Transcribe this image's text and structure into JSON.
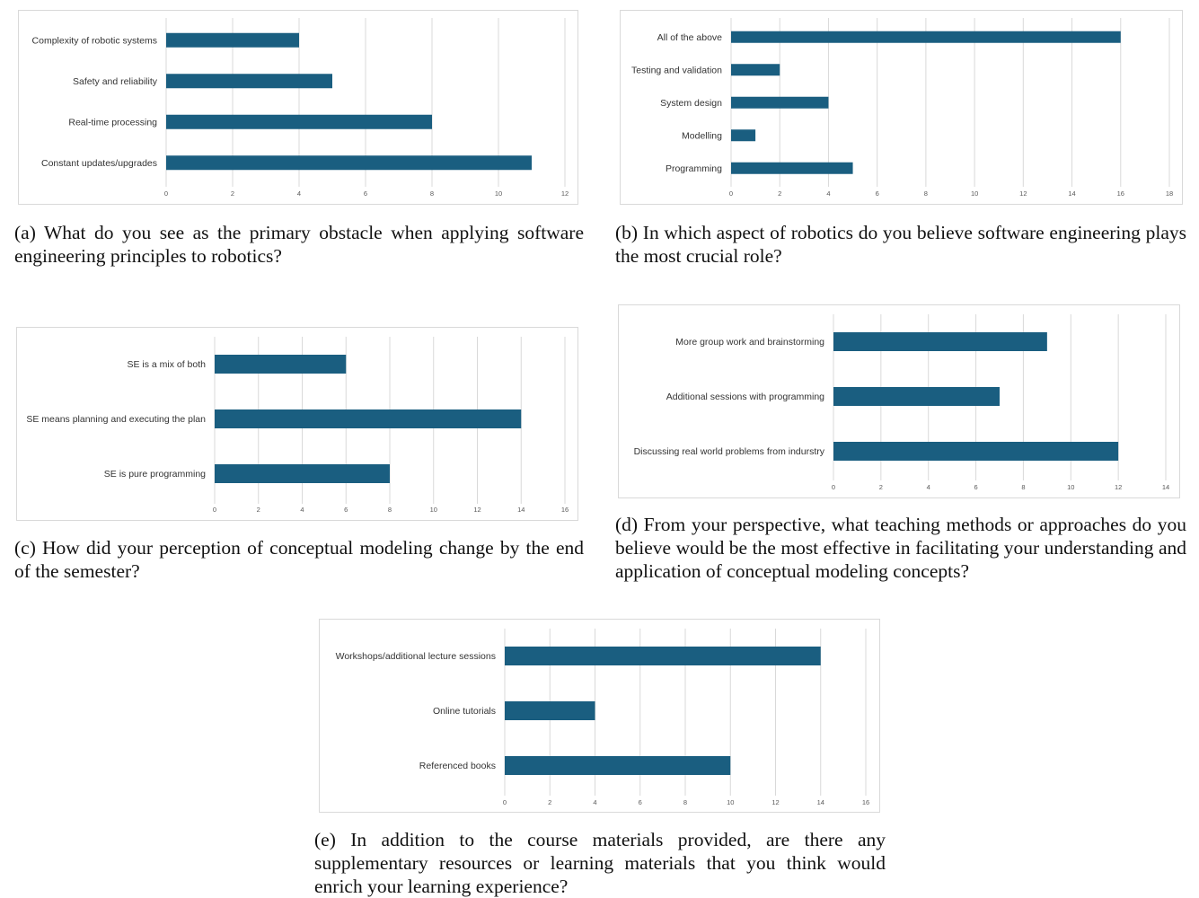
{
  "colors": {
    "bar": "#1a5e80",
    "grid": "#d9d9d9",
    "border": "#d9d9d9"
  },
  "chart_data": [
    {
      "id": "a",
      "type": "bar",
      "orientation": "horizontal",
      "categories": [
        "Complexity of robotic systems",
        "Safety and reliability",
        "Real-time processing",
        "Constant updates/upgrades"
      ],
      "values": [
        4,
        5,
        8,
        11
      ],
      "xlim": [
        0,
        12
      ],
      "ticks": [
        "0",
        "2",
        "4",
        "6",
        "8",
        "10",
        "12"
      ],
      "grid": true,
      "legend": "none",
      "caption": "(a) What do you see as the primary obstacle when applying software engineering principles to robotics?"
    },
    {
      "id": "b",
      "type": "bar",
      "orientation": "horizontal",
      "categories": [
        "All of the above",
        "Testing and validation",
        "System design",
        "Modelling",
        "Programming"
      ],
      "values": [
        16,
        2,
        4,
        1,
        5
      ],
      "xlim": [
        0,
        18
      ],
      "ticks": [
        "0",
        "2",
        "4",
        "6",
        "8",
        "10",
        "12",
        "14",
        "16",
        "18"
      ],
      "grid": true,
      "legend": "none",
      "caption": "(b) In which aspect of robotics do you believe software engineering plays the most crucial role?"
    },
    {
      "id": "c",
      "type": "bar",
      "orientation": "horizontal",
      "categories": [
        "SE is a mix of both",
        "SE means planning and executing the plan",
        "SE is pure programming"
      ],
      "values": [
        6,
        14,
        8
      ],
      "xlim": [
        0,
        16
      ],
      "ticks": [
        "0",
        "2",
        "4",
        "6",
        "8",
        "10",
        "12",
        "14",
        "16"
      ],
      "grid": true,
      "legend": "none",
      "caption": "(c) How did your perception of conceptual modeling change by the end of the semester?"
    },
    {
      "id": "d",
      "type": "bar",
      "orientation": "horizontal",
      "categories": [
        "More group work and brainstorming",
        "Additional sessions with programming",
        "Discussing real world problems from indurstry"
      ],
      "values": [
        9,
        7,
        12
      ],
      "xlim": [
        0,
        14
      ],
      "ticks": [
        "0",
        "2",
        "4",
        "6",
        "8",
        "10",
        "12",
        "14"
      ],
      "grid": true,
      "legend": "none",
      "caption": "(d) From your perspective, what teaching methods or approaches do you believe would be the most effective in facilitating your understanding and application of conceptual modeling concepts?"
    },
    {
      "id": "e",
      "type": "bar",
      "orientation": "horizontal",
      "categories": [
        "Workshops/additional lecture sessions",
        "Online tutorials",
        "Referenced books"
      ],
      "values": [
        14,
        4,
        10
      ],
      "xlim": [
        0,
        16
      ],
      "ticks": [
        "0",
        "2",
        "4",
        "6",
        "8",
        "10",
        "12",
        "14",
        "16"
      ],
      "grid": true,
      "legend": "none",
      "caption": "(e) In addition to the course materials provided, are there any supplementary resources or learning materials that you think would enrich your learning experience?"
    }
  ]
}
